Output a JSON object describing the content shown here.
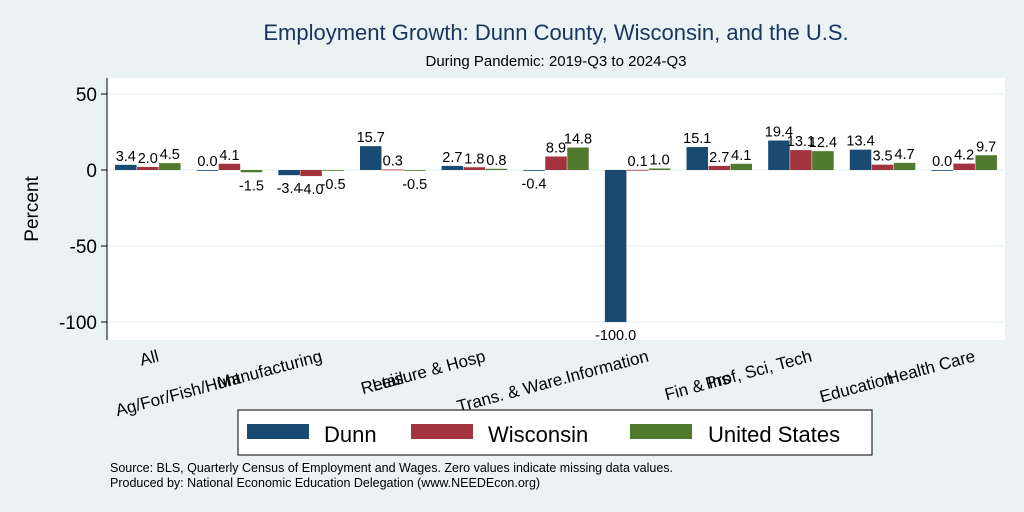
{
  "chart_data": {
    "type": "bar",
    "title": "Employment Growth: Dunn County, Wisconsin, and the U.S.",
    "subtitle": "During Pandemic: 2019-Q3 to 2024-Q3",
    "ylabel": "Percent",
    "xlabel": "",
    "ylim": [
      -105,
      58
    ],
    "yticks": [
      50,
      0,
      -50,
      -100
    ],
    "ytick_labels": [
      "50",
      "0",
      "-50",
      "-100"
    ],
    "grid": true,
    "legend_position": "bottom",
    "categories": [
      "All",
      "Ag/For/Fish/Hunt",
      "Manufacturing",
      "Retail",
      "Leisure & Hosp",
      "Trans. & Ware.",
      "Information",
      "Fin & Ins",
      "Prof, Sci, Tech",
      "Education",
      "Health Care"
    ],
    "series": [
      {
        "name": "Dunn",
        "color": "#1a4a72",
        "values": [
          3.4,
          0.0,
          -3.4,
          15.7,
          2.7,
          -0.4,
          -100.0,
          15.1,
          19.4,
          13.4,
          0.0
        ],
        "labels": [
          "3.4",
          "0.0",
          "-3.4",
          "15.7",
          "2.7",
          "-0.4",
          "-100.0",
          "15.1",
          "19.4",
          "13.4",
          "0.0"
        ]
      },
      {
        "name": "Wisconsin",
        "color": "#a3333d",
        "values": [
          2.0,
          4.1,
          -4.0,
          0.3,
          1.8,
          8.9,
          0.1,
          2.7,
          13.1,
          3.5,
          4.2
        ],
        "labels": [
          "2.0",
          "4.1",
          "-4.0",
          "0.3",
          "1.8",
          "8.9",
          "0.1",
          "2.7",
          "13.1",
          "3.5",
          "4.2"
        ]
      },
      {
        "name": "United States",
        "color": "#4f7a2e",
        "values": [
          4.5,
          -1.5,
          -0.5,
          -0.5,
          0.8,
          14.8,
          1.0,
          4.1,
          12.4,
          4.7,
          9.7
        ],
        "labels": [
          "4.5",
          "-1.5",
          "-0.5",
          "-0.5",
          "0.8",
          "14.8",
          "1.0",
          "4.1",
          "12.4",
          "4.7",
          "9.7"
        ]
      }
    ]
  },
  "footer": {
    "source": "Source: BLS, Quarterly Census of Employment and Wages. Zero values indicate missing data values.",
    "produced_by": "Produced by: National Economic Education Delegation (www.NEEDEcon.org)"
  }
}
